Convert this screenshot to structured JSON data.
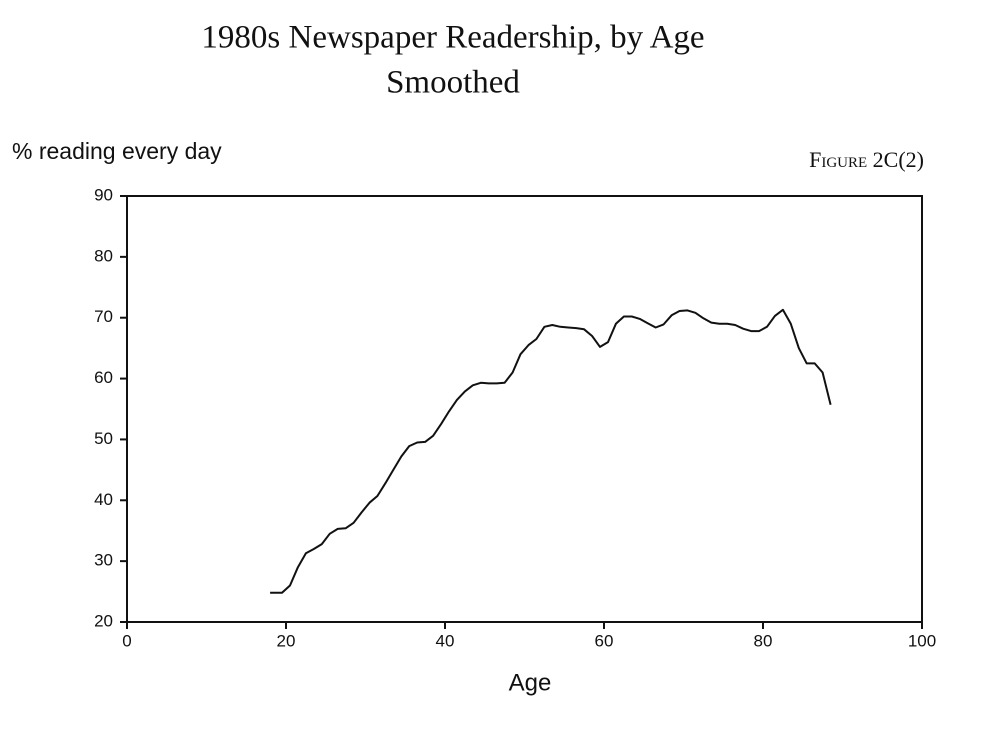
{
  "chart_data": {
    "type": "line",
    "title": "1980s Newspaper Readership, by Age",
    "subtitle": "Smoothed",
    "y_label": "% reading every day",
    "x_label": "Age",
    "annotation": "Figure 2C(2)",
    "color": "#111111",
    "x": [
      18,
      19.5,
      20.5,
      21.5,
      22.5,
      23.5,
      24.5,
      25.5,
      26.5,
      27.5,
      28.5,
      29.5,
      30.5,
      31.5,
      32.5,
      33.5,
      34.5,
      35.5,
      36.5,
      37.5,
      38.5,
      39.5,
      40.5,
      41.5,
      42.5,
      43.5,
      44.5,
      45.5,
      46.5,
      47.5,
      48.5,
      49.5,
      50.5,
      51.5,
      52.5,
      53.5,
      54.5,
      55.5,
      56.5,
      57.5,
      58.5,
      59.5,
      60.5,
      61.5,
      62.5,
      63.5,
      64.5,
      65.5,
      66.5,
      67.5,
      68.5,
      69.5,
      70.5,
      71.5,
      72.5,
      73.5,
      74.5,
      75.5,
      76.5,
      77.5,
      78.5,
      79.5,
      80.5,
      81.5,
      82.5,
      83.5,
      84.5,
      85.5,
      86.5,
      87.5,
      88.5
    ],
    "values": [
      24.8,
      24.8,
      26,
      29,
      31.3,
      32,
      32.8,
      34.5,
      35.3,
      35.4,
      36.3,
      38,
      39.6,
      40.7,
      42.8,
      45,
      47.2,
      48.9,
      49.5,
      49.6,
      50.6,
      52.5,
      54.6,
      56.5,
      57.9,
      58.9,
      59.3,
      59.2,
      59.2,
      59.3,
      61,
      64,
      65.5,
      66.5,
      68.5,
      68.8,
      68.5,
      68.4,
      68.3,
      68.1,
      67,
      65.2,
      66,
      69,
      70.2,
      70.2,
      69.8,
      69.1,
      68.4,
      68.9,
      70.4,
      71.1,
      71.2,
      70.8,
      69.9,
      69.2,
      69,
      69,
      68.8,
      68.2,
      67.8,
      67.8,
      68.5,
      70.3,
      71.3,
      69,
      65,
      62.5,
      62.5,
      61,
      55.7
    ],
    "xlim": [
      0,
      100
    ],
    "xticks": [
      0,
      20,
      40,
      60,
      80,
      100
    ],
    "ylim": [
      20,
      90
    ],
    "yticks": [
      20,
      30,
      40,
      50,
      60,
      70,
      80,
      90
    ],
    "grid": false
  }
}
